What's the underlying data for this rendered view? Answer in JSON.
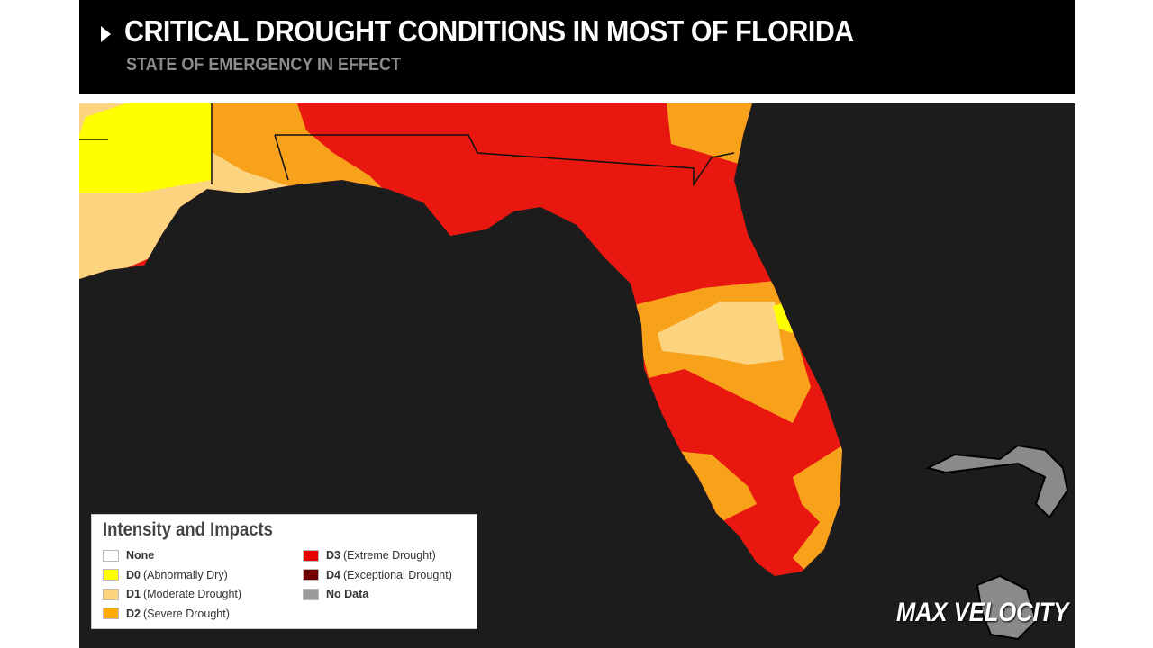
{
  "header": {
    "title": "CRITICAL DROUGHT CONDITIONS IN MOST OF FLORIDA",
    "subtitle": "STATE OF EMERGENCY IN EFFECT"
  },
  "legend": {
    "title": "Intensity and Impacts",
    "items": [
      {
        "label": "None",
        "color": "#ffffff"
      },
      {
        "code": "D0",
        "description": "(Abnormally Dry)",
        "color": "#ffff00"
      },
      {
        "code": "D1",
        "description": "(Moderate Drought)",
        "color": "#fcd37f"
      },
      {
        "code": "D2",
        "description": "(Severe Drought)",
        "color": "#ffaa00"
      },
      {
        "code": "D3",
        "description": "(Extreme Drought)",
        "color": "#e60000"
      },
      {
        "code": "D4",
        "description": "(Exceptional Drought)",
        "color": "#730000"
      },
      {
        "label": "No Data",
        "color": "#9b9b9b"
      }
    ]
  },
  "brand": "MAX VELOCITY"
}
